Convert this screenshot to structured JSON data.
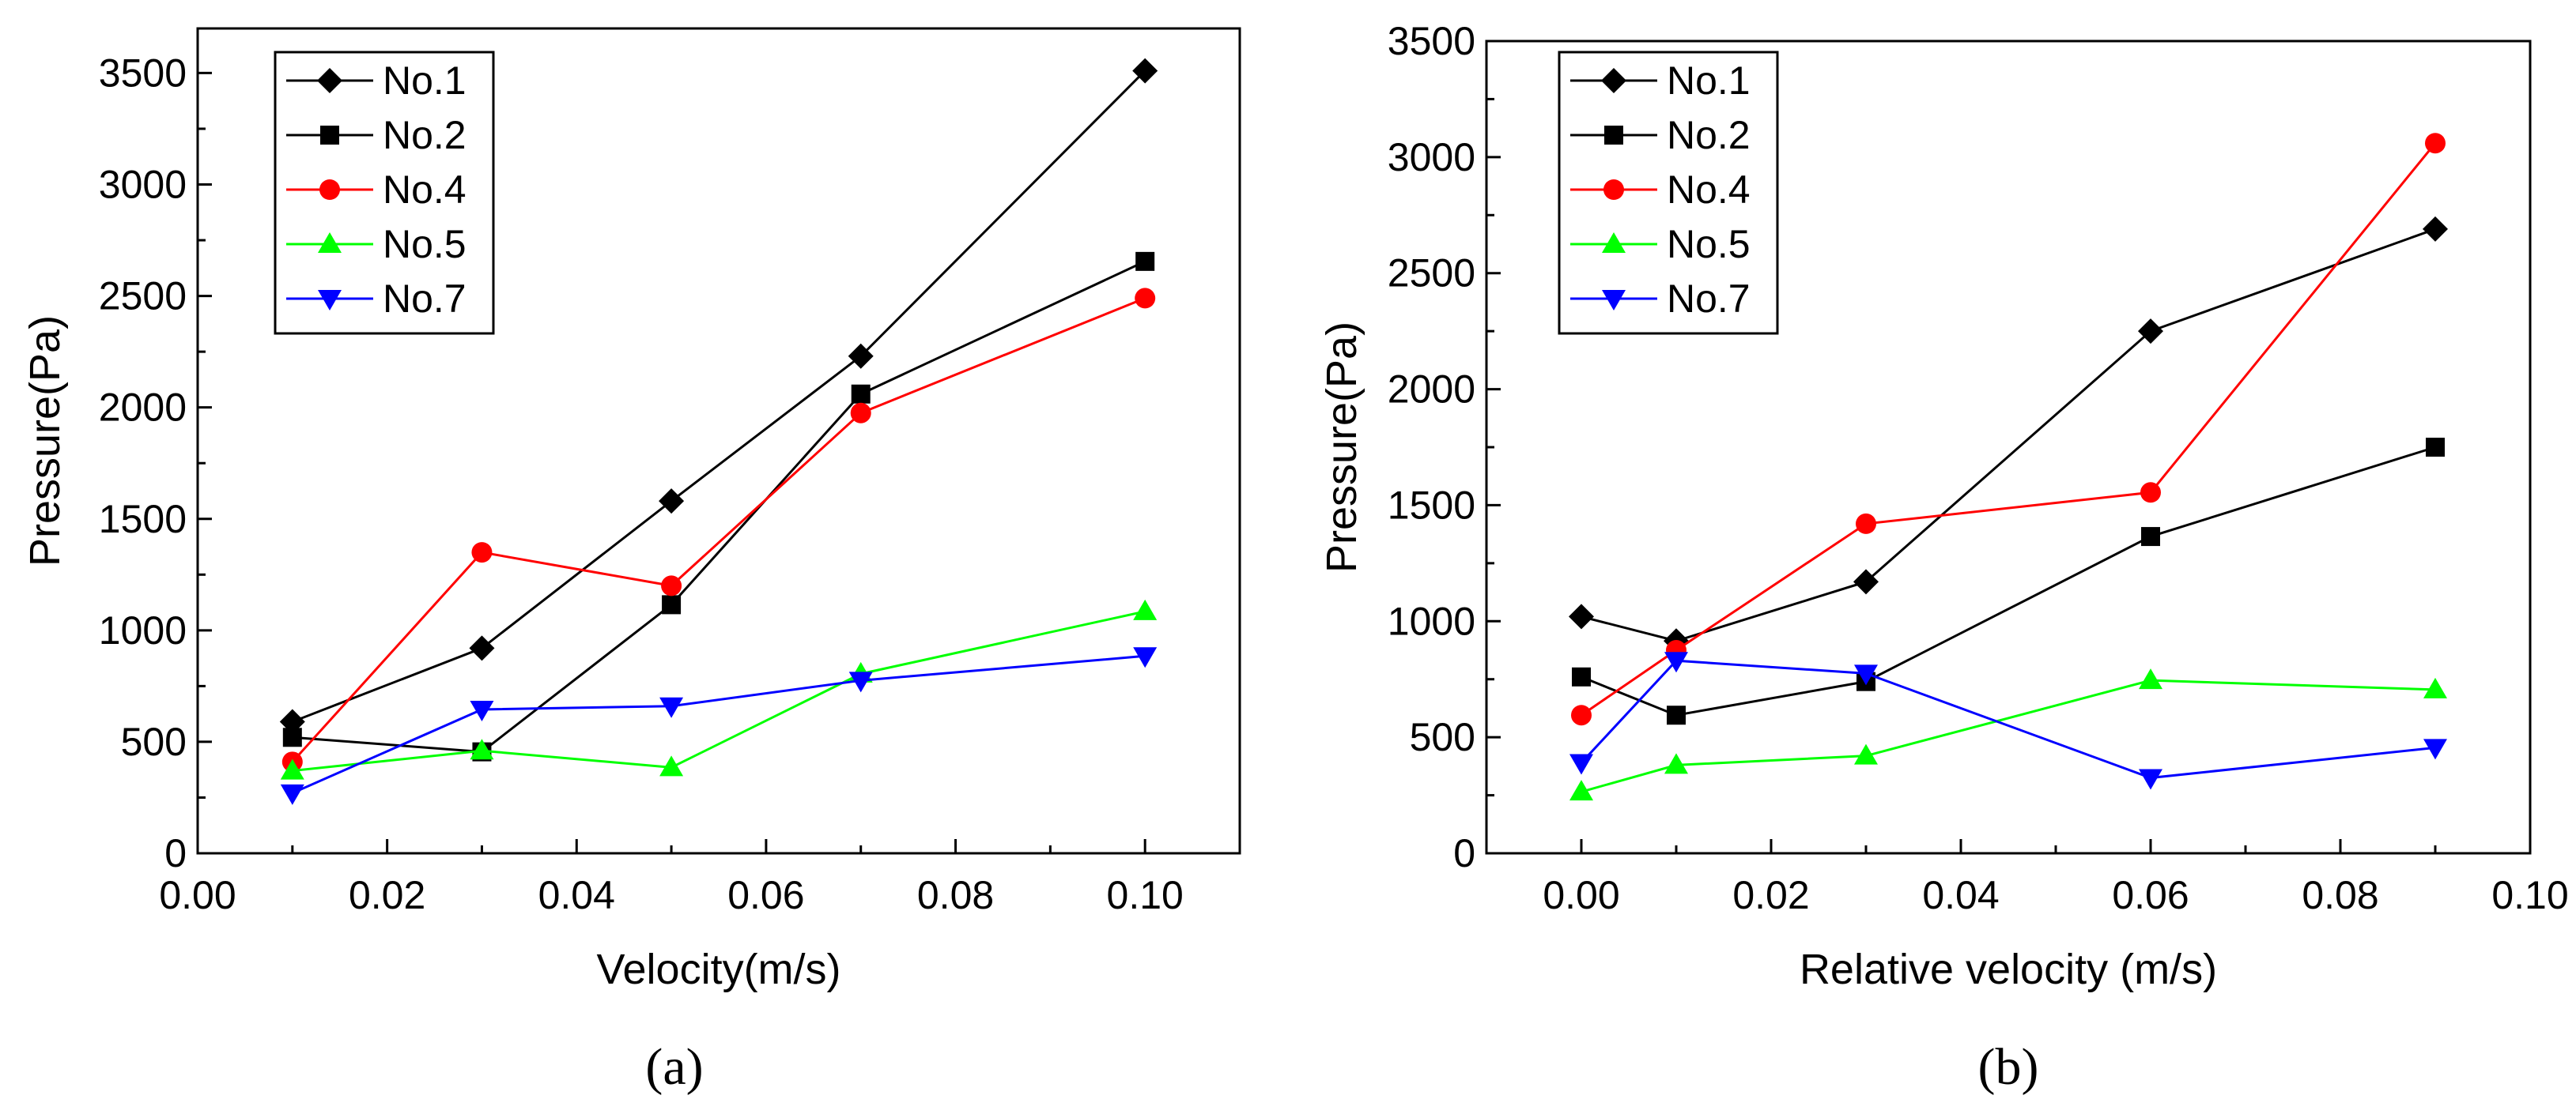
{
  "chart_data": [
    {
      "panel": "(a)",
      "type": "line",
      "title": "",
      "xlabel": "Velocity(m/s)",
      "ylabel": "Pressure(Pa)",
      "xlim": [
        0.0,
        0.11
      ],
      "ylim": [
        0,
        3700
      ],
      "xticks": [
        0.0,
        0.02,
        0.04,
        0.06,
        0.08,
        0.1
      ],
      "xtick_labels": [
        "0.00",
        "0.02",
        "0.04",
        "0.06",
        "0.08",
        "0.10"
      ],
      "yticks": [
        0,
        500,
        1000,
        1500,
        2000,
        2500,
        3000,
        3500
      ],
      "ytick_labels": [
        "0",
        "500",
        "1000",
        "1500",
        "2000",
        "2500",
        "3000",
        "3500"
      ],
      "legend_position": "top-left",
      "grid": false,
      "series": [
        {
          "name": "No.1",
          "color": "#000000",
          "marker": "diamond",
          "x": [
            0.01,
            0.03,
            0.05,
            0.07,
            0.1
          ],
          "values": [
            590,
            920,
            1580,
            2230,
            3510
          ]
        },
        {
          "name": "No.2",
          "color": "#000000",
          "marker": "square",
          "x": [
            0.01,
            0.03,
            0.05,
            0.07,
            0.1
          ],
          "values": [
            520,
            455,
            1115,
            2060,
            2655
          ]
        },
        {
          "name": "No.4",
          "color": "#ff0000",
          "marker": "circle",
          "x": [
            0.01,
            0.03,
            0.05,
            0.07,
            0.1
          ],
          "values": [
            410,
            1350,
            1200,
            1975,
            2490
          ]
        },
        {
          "name": "No.5",
          "color": "#00ff00",
          "marker": "triangle-up",
          "x": [
            0.01,
            0.03,
            0.05,
            0.07,
            0.1
          ],
          "values": [
            370,
            460,
            385,
            805,
            1085
          ]
        },
        {
          "name": "No.7",
          "color": "#0000ff",
          "marker": "triangle-down",
          "x": [
            0.01,
            0.03,
            0.05,
            0.07,
            0.1
          ],
          "values": [
            270,
            645,
            660,
            775,
            885
          ]
        }
      ]
    },
    {
      "panel": "(b)",
      "type": "line",
      "title": "",
      "xlabel": "Relative velocity (m/s)",
      "ylabel": "Pressure(Pa)",
      "xlim": [
        -0.01,
        0.1
      ],
      "ylim": [
        0,
        3500
      ],
      "xticks": [
        0.0,
        0.02,
        0.04,
        0.06,
        0.08,
        0.1
      ],
      "xtick_labels": [
        "0.00",
        "0.02",
        "0.04",
        "0.06",
        "0.08",
        "0.10"
      ],
      "yticks": [
        0,
        500,
        1000,
        1500,
        2000,
        2500,
        3000,
        3500
      ],
      "ytick_labels": [
        "0",
        "500",
        "1000",
        "1500",
        "2000",
        "2500",
        "3000",
        "3500"
      ],
      "legend_position": "top-left",
      "grid": false,
      "series": [
        {
          "name": "No.1",
          "color": "#000000",
          "marker": "diamond",
          "x": [
            0.0,
            0.01,
            0.03,
            0.06,
            0.09
          ],
          "values": [
            1020,
            915,
            1170,
            2250,
            2690
          ]
        },
        {
          "name": "No.2",
          "color": "#000000",
          "marker": "square",
          "x": [
            0.0,
            0.01,
            0.03,
            0.06,
            0.09
          ],
          "values": [
            760,
            595,
            740,
            1365,
            1750
          ]
        },
        {
          "name": "No.4",
          "color": "#ff0000",
          "marker": "circle",
          "x": [
            0.0,
            0.01,
            0.03,
            0.06,
            0.09
          ],
          "values": [
            595,
            875,
            1420,
            1555,
            3060
          ]
        },
        {
          "name": "No.5",
          "color": "#00ff00",
          "marker": "triangle-up",
          "x": [
            0.0,
            0.01,
            0.03,
            0.06,
            0.09
          ],
          "values": [
            265,
            380,
            420,
            745,
            705
          ]
        },
        {
          "name": "No.7",
          "color": "#0000ff",
          "marker": "triangle-down",
          "x": [
            0.0,
            0.01,
            0.03,
            0.06,
            0.09
          ],
          "values": [
            390,
            830,
            775,
            325,
            455
          ]
        }
      ]
    }
  ]
}
